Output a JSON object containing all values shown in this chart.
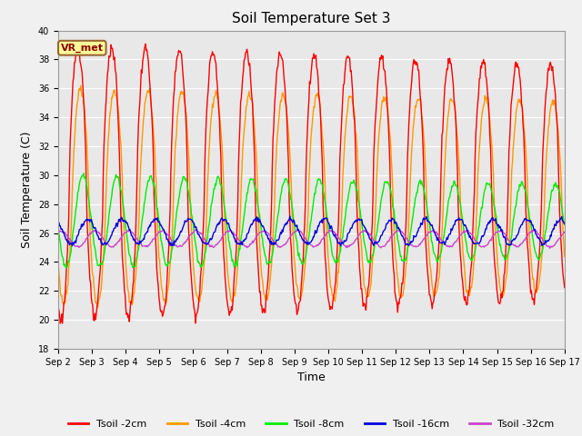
{
  "title": "Soil Temperature Set 3",
  "xlabel": "Time",
  "ylabel": "Soil Temperature (C)",
  "ylim": [
    18,
    40
  ],
  "yticks": [
    18,
    20,
    22,
    24,
    26,
    28,
    30,
    32,
    34,
    36,
    38,
    40
  ],
  "plot_bg_color": "#e8e8e8",
  "fig_bg_color": "#f0f0f0",
  "vr_met_label": "VR_met",
  "legend": [
    "Tsoil -2cm",
    "Tsoil -4cm",
    "Tsoil -8cm",
    "Tsoil -16cm",
    "Tsoil -32cm"
  ],
  "colors": {
    "2cm": "#ff0000",
    "4cm": "#ff9900",
    "8cm": "#00ee00",
    "16cm": "#0000dd",
    "32cm": "#cc44cc"
  },
  "n_days": 15,
  "start_day": 2,
  "pts_per_day": 48
}
